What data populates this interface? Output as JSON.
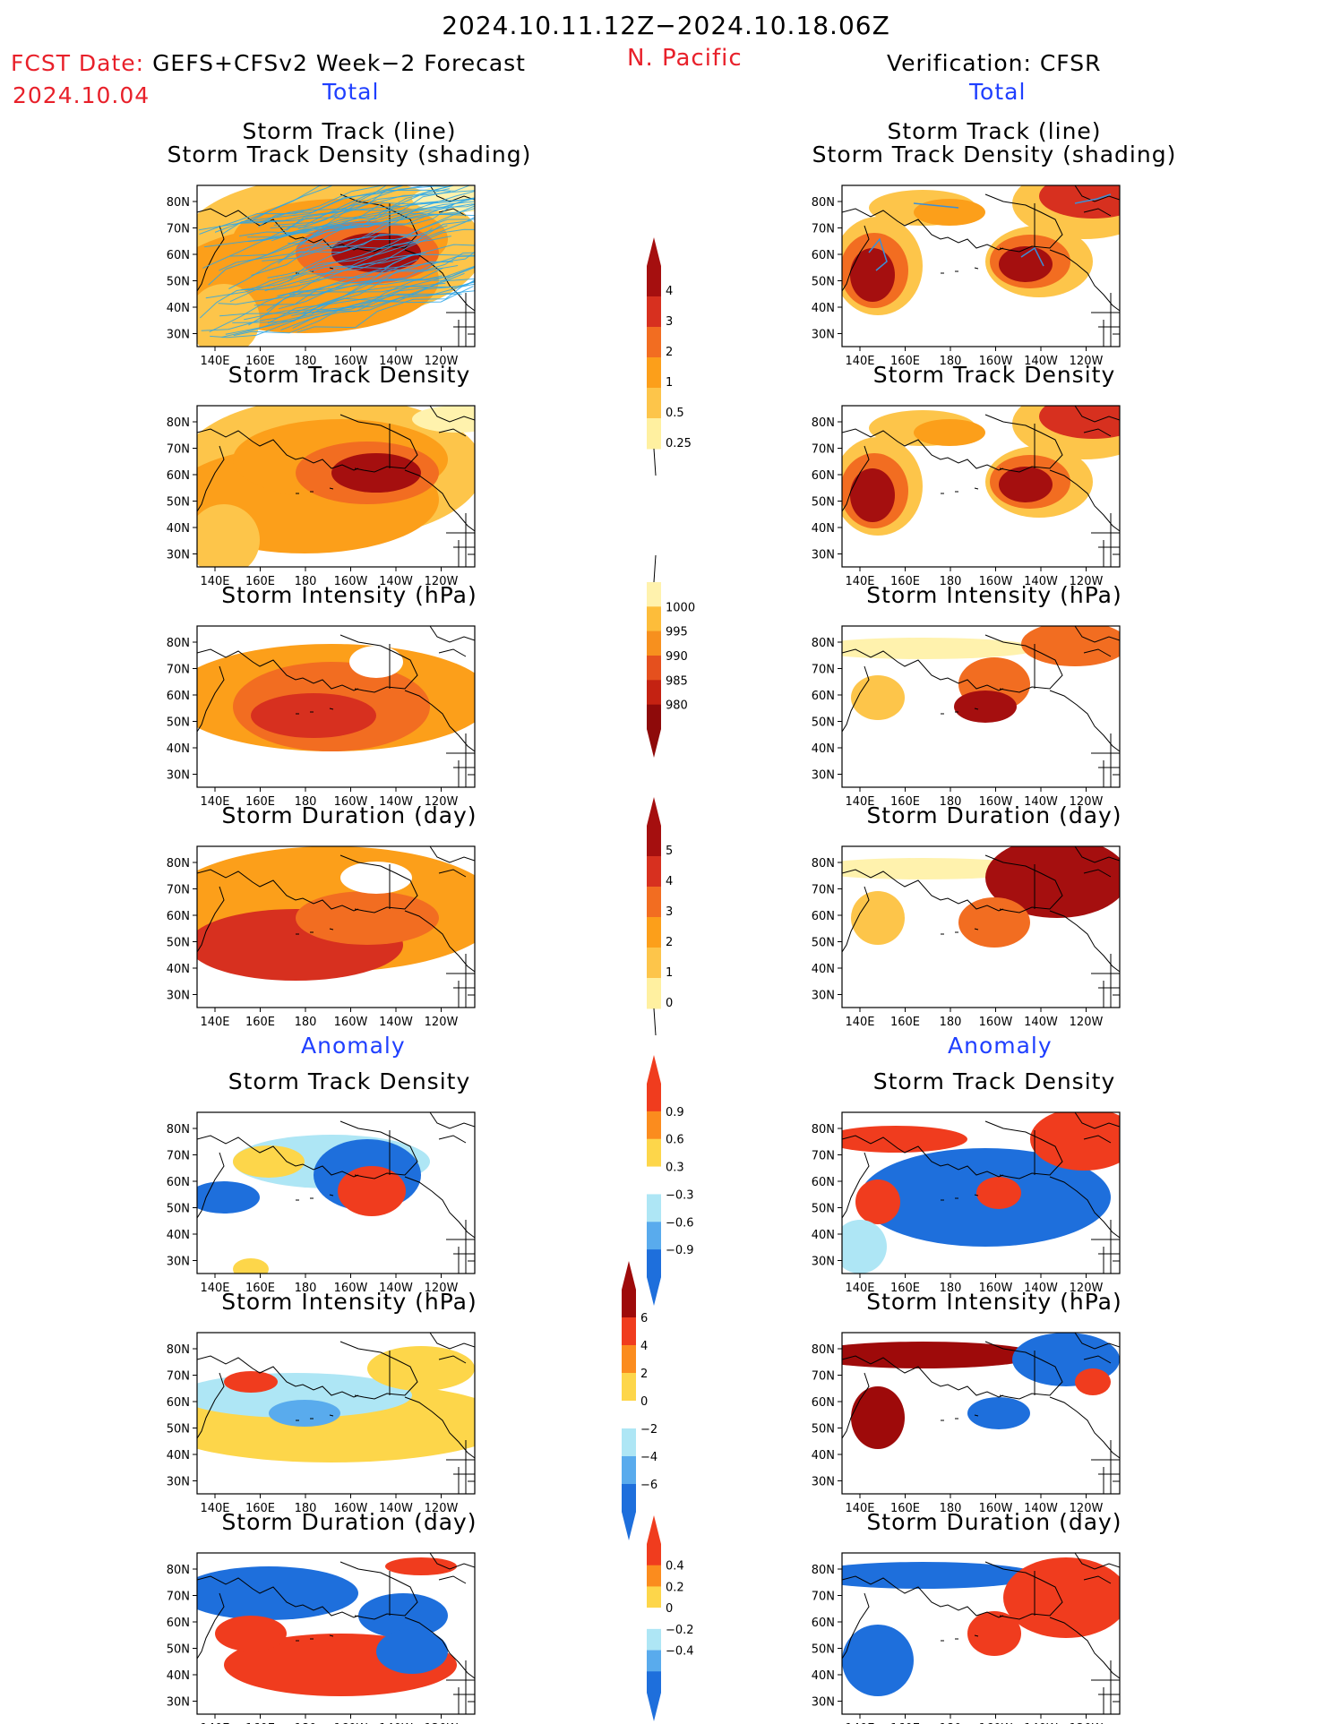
{
  "header": {
    "title": "2024.10.11.12Z−2024.10.18.06Z",
    "fcst_label": "FCST Date:",
    "fcst_value": "GEFS+CFSv2 Week−2 Forecast",
    "fcst_date": "2024.10.04",
    "region": "N. Pacific",
    "verification": "Verification: CFSR"
  },
  "columns": {
    "left": {
      "total_label": "Total",
      "anomaly_label": "Anomaly"
    },
    "right": {
      "total_label": "Total",
      "anomaly_label": "Anomaly"
    }
  },
  "panel_titles": {
    "track": [
      "Storm Track (line)",
      "Storm Track Density (shading)"
    ],
    "density": "Storm Track Density",
    "intensity": "Storm Intensity (hPa)",
    "duration": "Storm Duration (day)"
  },
  "axes": {
    "lon_ticks": [
      "140E",
      "160E",
      "180",
      "160W",
      "140W",
      "120W"
    ],
    "lat_ticks": [
      "80N",
      "70N",
      "60N",
      "50N",
      "40N",
      "30N"
    ]
  },
  "colorbars": [
    {
      "id": "density-total",
      "labels": [
        "4",
        "3",
        "2",
        "1",
        "0.5",
        "0.25"
      ],
      "colors": [
        "#a50f0f",
        "#d7301f",
        "#f26d21",
        "#fc9f1a",
        "#fdc54a",
        "#fff0a0"
      ]
    },
    {
      "id": "intensity-total",
      "labels": [
        "1000",
        "995",
        "990",
        "985",
        "980"
      ],
      "colors": [
        "#fff2ad",
        "#fdbd3a",
        "#f7901e",
        "#e5501e",
        "#c42212",
        "#8e0a0a"
      ]
    },
    {
      "id": "duration-total",
      "labels": [
        "5",
        "4",
        "3",
        "2",
        "1",
        "0"
      ],
      "colors": [
        "#a50f0f",
        "#d7301f",
        "#f26d21",
        "#fc9f1a",
        "#fdc54a",
        "#fff0a0"
      ]
    },
    {
      "id": "density-anomaly",
      "labels": [
        "0.9",
        "0.6",
        "0.3",
        "−0.3",
        "−0.6",
        "−0.9"
      ],
      "colors": [
        "#f03c1e",
        "#fb8c1e",
        "#fdd64a",
        "#ffffff",
        "#aee6f5",
        "#59abed",
        "#1e6fdc"
      ]
    },
    {
      "id": "intensity-anomaly",
      "labels": [
        "6",
        "4",
        "2",
        "0",
        "−2",
        "−4",
        "−6"
      ],
      "colors": [
        "#9e0a0a",
        "#f03c1e",
        "#fb8c1e",
        "#fdd64a",
        "#ffffff",
        "#aee6f5",
        "#59abed",
        "#1e6fdc"
      ]
    },
    {
      "id": "duration-anomaly",
      "labels": [
        "0.4",
        "0.2",
        "0",
        "−0.2",
        "−0.4"
      ],
      "colors": [
        "#f03c1e",
        "#fb8c1e",
        "#fdd64a",
        "#ffffff",
        "#aee6f5",
        "#59abed",
        "#1e6fdc"
      ]
    }
  ]
}
